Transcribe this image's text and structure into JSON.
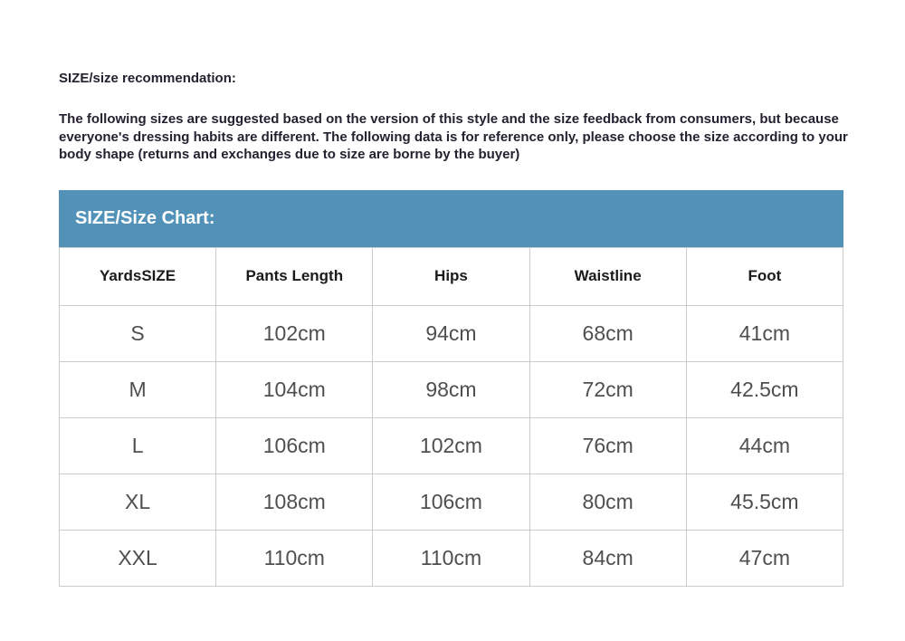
{
  "colors": {
    "page_background": "#ffffff",
    "chart_header_bg": "#5292b8",
    "chart_header_text": "#ffffff",
    "table_border": "#cccccc",
    "table_header_text": "#1b1b1b",
    "table_cell_text": "#4f4f4f",
    "intro_text": "#262130"
  },
  "recommendation": {
    "heading": "SIZE/size recommendation:",
    "body": "The following sizes are suggested based on the version of this style and the size feedback from consumers, but because everyone's dressing habits are different. The following data is for reference only, please choose the size according to your body shape (returns and exchanges due to size are borne by the buyer)"
  },
  "size_chart": {
    "title": "SIZE/Size Chart:",
    "columns": [
      "YardsSIZE",
      "Pants Length",
      "Hips",
      "Waistline",
      "Foot"
    ],
    "rows": [
      {
        "size": "S",
        "values": [
          "102cm",
          "94cm",
          "68cm",
          "41cm"
        ]
      },
      {
        "size": "M",
        "values": [
          "104cm",
          "98cm",
          "72cm",
          "42.5cm"
        ]
      },
      {
        "size": "L",
        "values": [
          "106cm",
          "102cm",
          "76cm",
          "44cm"
        ]
      },
      {
        "size": "XL",
        "values": [
          "108cm",
          "106cm",
          "80cm",
          "45.5cm"
        ]
      },
      {
        "size": "XXL",
        "values": [
          "110cm",
          "110cm",
          "84cm",
          "47cm"
        ]
      }
    ]
  }
}
